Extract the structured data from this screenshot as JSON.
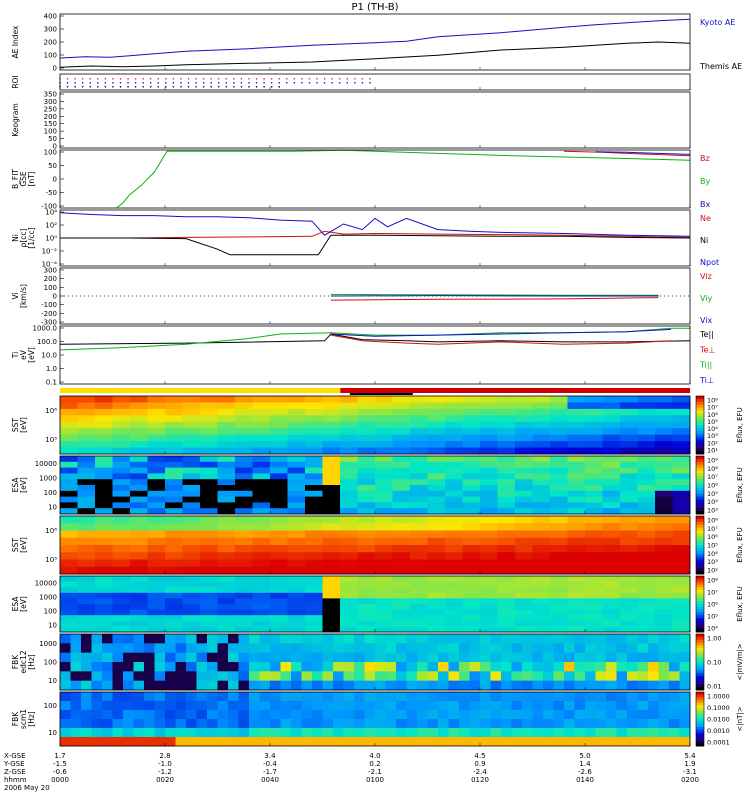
{
  "title": "P1 (TH-B)",
  "chart_data": [
    {
      "type": "line",
      "ylabel": [
        "AE Index"
      ],
      "yticks": [
        "0",
        "100",
        "200",
        "300",
        "400"
      ],
      "ylim": [
        0,
        420
      ],
      "series": [
        {
          "name": "Kyoto AE",
          "color": "#1010c8",
          "x": [
            0,
            0.04,
            0.08,
            0.12,
            0.2,
            0.3,
            0.4,
            0.5,
            0.55,
            0.6,
            0.7,
            0.8,
            0.85,
            0.9,
            0.95,
            1.0
          ],
          "values": [
            90,
            100,
            95,
            110,
            140,
            160,
            185,
            205,
            215,
            250,
            280,
            320,
            340,
            355,
            370,
            380
          ]
        },
        {
          "name": "Themis AE",
          "color": "#000000",
          "x": [
            0,
            0.05,
            0.1,
            0.15,
            0.2,
            0.3,
            0.4,
            0.5,
            0.6,
            0.7,
            0.8,
            0.9,
            0.95,
            1.0
          ],
          "values": [
            20,
            30,
            25,
            30,
            40,
            50,
            60,
            85,
            110,
            150,
            170,
            200,
            210,
            200
          ]
        }
      ]
    },
    {
      "type": "scatter",
      "ylabel": [
        "ROI"
      ],
      "yticks": [],
      "series": [
        {
          "name": "",
          "color": "#c83030",
          "row": 0.3,
          "from": 0.0,
          "to": 0.5
        },
        {
          "name": "",
          "color": "#1010c8",
          "row": 0.55,
          "from": 0.0,
          "to": 0.5
        },
        {
          "name": "",
          "color": "#000000",
          "row": 0.8,
          "from": 0.0,
          "to": 0.36
        }
      ]
    },
    {
      "type": "line",
      "ylabel": [
        "Keogram"
      ],
      "yticks": [
        "0",
        "50",
        "100",
        "150",
        "200",
        "250",
        "300",
        "350"
      ],
      "ylim": [
        0,
        350
      ],
      "series": []
    },
    {
      "type": "line",
      "ylabel": [
        "B_FIT",
        "GSE",
        "[nT]"
      ],
      "yticks": [
        "-100",
        "-50",
        "0",
        "50",
        "100"
      ],
      "ylim": [
        -120,
        105
      ],
      "series": [
        {
          "name": "Bz",
          "color": "#d01010",
          "x": [
            0.8,
            0.86,
            0.92,
            1.0
          ],
          "values": [
            100,
            96,
            90,
            83
          ]
        },
        {
          "name": "By",
          "color": "#10b010",
          "x": [
            0.09,
            0.1,
            0.11,
            0.13,
            0.15,
            0.17,
            0.37,
            0.45,
            0.5,
            0.6,
            0.7,
            0.8,
            0.9,
            1.0
          ],
          "values": [
            -120,
            -100,
            -70,
            -30,
            20,
            100,
            100,
            104,
            100,
            92,
            84,
            78,
            72,
            65
          ]
        },
        {
          "name": "Bx",
          "color": "#1010c8",
          "x": [
            0.85,
            0.9,
            0.95,
            1.0
          ],
          "values": [
            98,
            96,
            92,
            88
          ]
        }
      ]
    },
    {
      "type": "line",
      "ylabel": [
        "Ni",
        "ρ[cc]",
        "[1/cc]"
      ],
      "yticks": [
        "10⁻⁴",
        "10⁻²",
        "10⁰",
        "10²",
        "10⁴"
      ],
      "ylog": true,
      "ylim": [
        -5,
        5
      ],
      "series": [
        {
          "name": "Ne",
          "color": "#d01010",
          "x": [
            0,
            0.1,
            0.2,
            0.3,
            0.4,
            0.42,
            0.45,
            0.5,
            0.6,
            0.7,
            0.8,
            0.9,
            1.0
          ],
          "values": [
            0,
            0,
            0.1,
            0.2,
            0.3,
            1.2,
            0.7,
            0.8,
            0.7,
            0.6,
            0.5,
            0.3,
            0.1
          ]
        },
        {
          "name": "Ni",
          "color": "#000000",
          "x": [
            0,
            0.1,
            0.2,
            0.25,
            0.27,
            0.3,
            0.35,
            0.4,
            0.41,
            0.43,
            0.5,
            0.6,
            0.7,
            0.8,
            0.9,
            1.0
          ],
          "values": [
            0,
            0,
            -0.1,
            -2,
            -3,
            -3,
            -3,
            -3,
            -3,
            0.5,
            0.5,
            0.4,
            0.3,
            0.3,
            0.1,
            0.0
          ]
        },
        {
          "name": "Npot",
          "color": "#1010c8",
          "x": [
            0,
            0.05,
            0.1,
            0.15,
            0.2,
            0.25,
            0.3,
            0.35,
            0.4,
            0.42,
            0.45,
            0.48,
            0.5,
            0.52,
            0.55,
            0.6,
            0.65,
            0.7,
            0.8,
            0.9,
            1.0
          ],
          "values": [
            4.5,
            4.2,
            4,
            4,
            3.8,
            3.8,
            3.6,
            3.2,
            3,
            0.5,
            2.5,
            1.5,
            3.5,
            2,
            3.5,
            1.5,
            1.2,
            1,
            0.8,
            0.5,
            0.3
          ]
        }
      ]
    },
    {
      "type": "line",
      "ylabel": [
        "Vi",
        "[km/s]"
      ],
      "yticks": [
        "-300",
        "-200",
        "-100",
        "0",
        "100",
        "200",
        "300"
      ],
      "ylim": [
        -340,
        340
      ],
      "series": [
        {
          "name": "Viz",
          "color": "#d01010",
          "x": [
            0.43,
            0.6,
            0.8,
            0.95
          ],
          "values": [
            -50,
            -40,
            -35,
            -20
          ]
        },
        {
          "name": "Viy",
          "color": "#10b010",
          "x": [
            0.43,
            0.6,
            0.8,
            0.95
          ],
          "values": [
            20,
            15,
            10,
            10
          ]
        },
        {
          "name": "Vix",
          "color": "#1010c8",
          "x": [
            0.43,
            0.6,
            0.8,
            0.95
          ],
          "values": [
            0,
            5,
            0,
            0
          ]
        }
      ]
    },
    {
      "type": "line",
      "ylabel": [
        "Ti",
        "eV",
        "[eV]"
      ],
      "yticks": [
        "0.1",
        "1.0",
        "10.0",
        "100.0",
        "1000.0"
      ],
      "ylog": true,
      "ylim": [
        -1.5,
        3.6
      ],
      "series": [
        {
          "name": "Te||",
          "color": "#000000",
          "x": [
            0,
            0.2,
            0.42,
            0.43,
            0.48,
            0.55,
            0.6,
            0.7,
            0.8,
            0.9,
            1.0
          ],
          "values": [
            2,
            2.1,
            2.3,
            2.9,
            2.4,
            2.3,
            2.2,
            2.3,
            2.2,
            2.2,
            2.3
          ]
        },
        {
          "name": "Te⊥",
          "color": "#d01010",
          "x": [
            0.43,
            0.48,
            0.55,
            0.6,
            0.7,
            0.8,
            0.9,
            0.97
          ],
          "values": [
            2.8,
            2.3,
            2.1,
            2.0,
            2.2,
            2.0,
            2.1,
            2.3
          ]
        },
        {
          "name": "Ti||",
          "color": "#10b010",
          "x": [
            0,
            0.1,
            0.2,
            0.3,
            0.35,
            0.43,
            0.5,
            0.6,
            0.7,
            0.8,
            0.9,
            0.97,
            1.0
          ],
          "values": [
            1.5,
            1.7,
            2.0,
            2.5,
            2.9,
            3.0,
            2.8,
            2.8,
            3.0,
            3.0,
            3.1,
            3.4,
            3.4
          ]
        },
        {
          "name": "Ti⊥",
          "color": "#1010c8",
          "x": [
            0.43,
            0.5,
            0.6,
            0.7,
            0.8,
            0.9,
            0.97
          ],
          "values": [
            2.9,
            2.7,
            2.8,
            2.9,
            3.0,
            3.1,
            3.3
          ]
        }
      ]
    },
    {
      "type": "heatmap",
      "ylabel": [
        "SST",
        "[eV]"
      ],
      "yticks": [
        "10⁶",
        "10⁵"
      ],
      "colorbar": {
        "ticks": [
          "10⁸",
          "10⁷",
          "10⁶",
          "10⁵",
          "10⁴",
          "10³",
          "10²",
          "10¹"
        ],
        "label": "Eflux, EFU"
      },
      "rows": 9,
      "cols": 36,
      "pattern": "sst_e"
    },
    {
      "type": "heatmap",
      "ylabel": [
        "ESA",
        "[eV]"
      ],
      "yticks": [
        "10000",
        "1000",
        "100",
        "10"
      ],
      "colorbar": {
        "ticks": [
          "10⁹",
          "10⁸",
          "10⁷",
          "10⁶",
          "10⁵",
          "10⁴",
          "10³"
        ],
        "label": "Eflux, EFU"
      },
      "rows": 10,
      "cols": 36,
      "pattern": "esa_e"
    },
    {
      "type": "heatmap",
      "ylabel": [
        "SST",
        "[eV]"
      ],
      "yticks": [
        "10⁶",
        "10⁵"
      ],
      "colorbar": {
        "ticks": [
          "10⁸",
          "10⁷",
          "10⁶",
          "10⁵",
          "10⁴",
          "10³",
          "10²"
        ],
        "label": "Eflux, EFU"
      },
      "rows": 8,
      "cols": 36,
      "pattern": "sst_i"
    },
    {
      "type": "heatmap",
      "ylabel": [
        "ESA",
        "[eV]"
      ],
      "yticks": [
        "10000",
        "1000",
        "100",
        "10"
      ],
      "colorbar": {
        "ticks": [
          "10⁸",
          "10⁷",
          "10⁶",
          "10⁵",
          "10⁴"
        ],
        "label": "Eflux, EFU"
      },
      "rows": 10,
      "cols": 36,
      "pattern": "esa_i"
    },
    {
      "type": "heatmap",
      "ylabel": [
        "FBK",
        "edc12",
        "[Hz]"
      ],
      "yticks": [
        "1000",
        "100",
        "10"
      ],
      "colorbar": {
        "ticks": [
          "1.00",
          "0.10",
          "0.01"
        ],
        "label": "<|mV/m|>"
      },
      "rows": 6,
      "cols": 60,
      "pattern": "fbk_e"
    },
    {
      "type": "heatmap",
      "ylabel": [
        "FBK",
        "scm1",
        "[Hz]"
      ],
      "yticks": [
        "100",
        "10"
      ],
      "colorbar": {
        "ticks": [
          "1.0000",
          "0.1000",
          "0.0100",
          "0.0010",
          "0.0001"
        ],
        "label": "<|nT|>"
      },
      "rows": 6,
      "cols": 60,
      "pattern": "fbk_b"
    }
  ],
  "xaxis": {
    "row_labels": [
      "X-GSE",
      "Y-GSE",
      "Z-GSE",
      "hhmm",
      "2006 May 20"
    ],
    "columns": [
      [
        "1.7",
        "-1.5",
        "-0.6",
        "0000"
      ],
      [
        "2.8",
        "-1.0",
        "-1.2",
        "0020"
      ],
      [
        "3.4",
        "-0.4",
        "-1.7",
        "0040"
      ],
      [
        "4.0",
        "0.2",
        "-2.1",
        "0100"
      ],
      [
        "4.5",
        "0.9",
        "-2.4",
        "0120"
      ],
      [
        "5.0",
        "1.4",
        "-2.6",
        "0140"
      ],
      [
        "5.4",
        "1.9",
        "-3.1",
        "0200"
      ]
    ]
  }
}
